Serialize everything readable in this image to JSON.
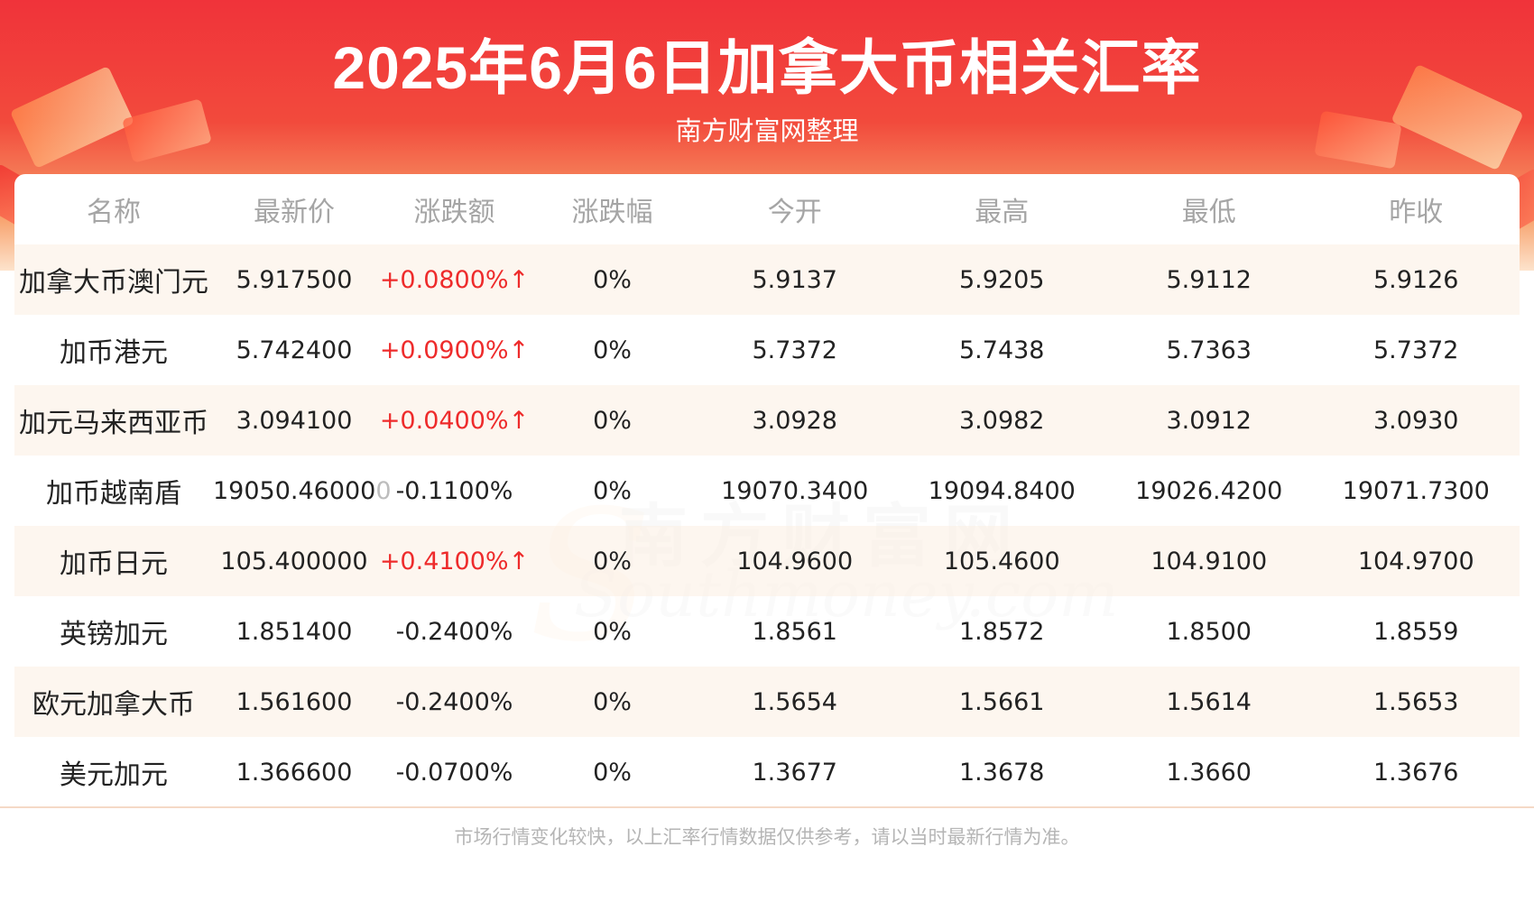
{
  "header": {
    "title": "2025年6月6日加拿大币相关汇率",
    "subtitle": "南方财富网整理"
  },
  "table": {
    "columns": [
      "名称",
      "最新价",
      "涨跌额",
      "涨跌幅",
      "今开",
      "最高",
      "最低",
      "昨收"
    ],
    "rows": [
      {
        "name": "加拿大币澳门元",
        "latest": "5.917500",
        "change": "+0.0800%↑",
        "pct": "0%",
        "open": "5.9137",
        "high": "5.9205",
        "low": "5.9112",
        "prev": "5.9126",
        "direction": "up"
      },
      {
        "name": "加币港元",
        "latest": "5.742400",
        "change": "+0.0900%↑",
        "pct": "0%",
        "open": "5.7372",
        "high": "5.7438",
        "low": "5.7363",
        "prev": "5.7372",
        "direction": "up"
      },
      {
        "name": "加元马来西亚币",
        "latest": "3.094100",
        "change": "+0.0400%↑",
        "pct": "0%",
        "open": "3.0928",
        "high": "3.0982",
        "low": "3.0912",
        "prev": "3.0930",
        "direction": "up"
      },
      {
        "name": "加币越南盾",
        "latest": "19050.460000",
        "change": "-0.1100%",
        "pct": "0%",
        "open": "19070.3400",
        "high": "19094.8400",
        "low": "19026.4200",
        "prev": "19071.7300",
        "direction": "down"
      },
      {
        "name": "加币日元",
        "latest": "105.400000",
        "change": "+0.4100%↑",
        "pct": "0%",
        "open": "104.9600",
        "high": "105.4600",
        "low": "104.9100",
        "prev": "104.9700",
        "direction": "up"
      },
      {
        "name": "英镑加元",
        "latest": "1.851400",
        "change": "-0.2400%",
        "pct": "0%",
        "open": "1.8561",
        "high": "1.8572",
        "low": "1.8500",
        "prev": "1.8559",
        "direction": "down"
      },
      {
        "name": "欧元加拿大币",
        "latest": "1.561600",
        "change": "-0.2400%",
        "pct": "0%",
        "open": "1.5654",
        "high": "1.5661",
        "low": "1.5614",
        "prev": "1.5653",
        "direction": "down"
      },
      {
        "name": "美元加元",
        "latest": "1.366600",
        "change": "-0.0700%",
        "pct": "0%",
        "open": "1.3677",
        "high": "1.3678",
        "low": "1.3660",
        "prev": "1.3676",
        "direction": "down"
      }
    ]
  },
  "watermark": {
    "cn": "南方财富网",
    "en": "Southmoney.com"
  },
  "footer": {
    "note": "市场行情变化较快，以上汇率行情数据仅供参考，请以当时最新行情为准。"
  },
  "colors": {
    "up": "#ee2b2b",
    "banner": "#f0333a",
    "row_alt": "#fdf4ec"
  }
}
